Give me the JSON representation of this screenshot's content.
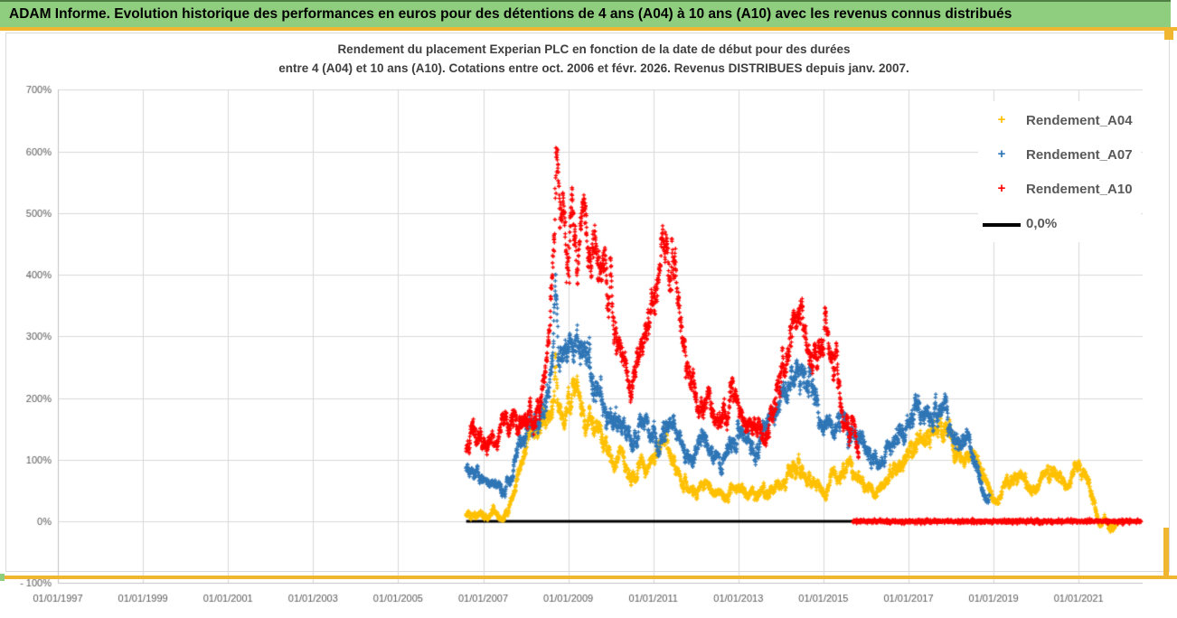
{
  "window": {
    "title": "ADAM Informe. Evolution historique des performances en euros pour des détentions de 4 ans (A04) à 10 ans (A10) avec les revenus connus distribués"
  },
  "theme": {
    "header_bg": "#8FCE7E",
    "header_top_border": "#4F7F42",
    "accent_gold": "#F0B62F",
    "grid_color": "#D9D9D9",
    "plot_border": "#C0C0C0",
    "axis_text": "#595959",
    "title_text": "#3F3F3F",
    "series_a04": "#FFC000",
    "series_a07": "#2E75B6",
    "series_a10": "#FF0000",
    "zero_line": "#000000"
  },
  "chart_data": {
    "type": "scatter",
    "title_line1": "Rendement du placement Experian PLC en fonction de la date de début pour des durées",
    "title_line2": "entre 4 (A04) et 10 ans (A10). Cotations entre oct. 2006 et févr. 2026. Revenus DISTRIBUES depuis janv. 2007.",
    "x_axis": {
      "tick_labels": [
        "01/01/1997",
        "01/01/1999",
        "01/01/2001",
        "01/01/2003",
        "01/01/2005",
        "01/01/2007",
        "01/01/2009",
        "01/01/2011",
        "01/01/2013",
        "01/01/2015",
        "01/01/2017",
        "01/01/2019",
        "01/01/2021"
      ],
      "tick_years": [
        1997,
        1999,
        2001,
        2003,
        2005,
        2007,
        2009,
        2011,
        2013,
        2015,
        2017,
        2019,
        2021
      ],
      "min_year": 1997,
      "max_year": 2022.5,
      "grid": true
    },
    "y_axis": {
      "tick_labels": [
        "700%",
        "600%",
        "500%",
        "400%",
        "300%",
        "200%",
        "100%",
        "0%",
        "- 100%"
      ],
      "tick_values": [
        700,
        600,
        500,
        400,
        300,
        200,
        100,
        0,
        -100
      ],
      "min": -100,
      "max": 700,
      "grid": true
    },
    "legend": {
      "position": "right",
      "entries": [
        {
          "label": "Rendement_A04",
          "marker": "plus",
          "color": "#FFC000"
        },
        {
          "label": "Rendement_A07",
          "marker": "plus",
          "color": "#2E75B6"
        },
        {
          "label": "Rendement_A10",
          "marker": "plus",
          "color": "#FF0000"
        },
        {
          "label": "0,0%",
          "marker": "line",
          "color": "#000000"
        }
      ]
    },
    "series": [
      {
        "name": "Rendement_A04",
        "type": "scatter",
        "marker": "plus",
        "color": "#FFC000",
        "value_range": [
          -24,
          286
        ],
        "anchors": [
          [
            2006.6,
            10
          ],
          [
            2006.9,
            15
          ],
          [
            2007.1,
            7
          ],
          [
            2007.25,
            16
          ],
          [
            2007.4,
            3
          ],
          [
            2007.55,
            12
          ],
          [
            2007.7,
            38
          ],
          [
            2007.85,
            85
          ],
          [
            2008.0,
            118
          ],
          [
            2008.15,
            138
          ],
          [
            2008.3,
            148
          ],
          [
            2008.45,
            158
          ],
          [
            2008.58,
            178
          ],
          [
            2008.64,
            195
          ],
          [
            2008.7,
            272
          ],
          [
            2008.76,
            200
          ],
          [
            2008.85,
            162
          ],
          [
            2009.0,
            188
          ],
          [
            2009.1,
            212
          ],
          [
            2009.25,
            192
          ],
          [
            2009.4,
            158
          ],
          [
            2009.55,
            172
          ],
          [
            2009.7,
            138
          ],
          [
            2009.85,
            118
          ],
          [
            2010.0,
            104
          ],
          [
            2010.15,
            118
          ],
          [
            2010.3,
            93
          ],
          [
            2010.45,
            64
          ],
          [
            2010.6,
            80
          ],
          [
            2010.75,
            99
          ],
          [
            2010.9,
            88
          ],
          [
            2011.1,
            114
          ],
          [
            2011.3,
            128
          ],
          [
            2011.45,
            94
          ],
          [
            2011.6,
            74
          ],
          [
            2011.8,
            56
          ],
          [
            2012.0,
            48
          ],
          [
            2012.2,
            62
          ],
          [
            2012.4,
            50
          ],
          [
            2012.6,
            38
          ],
          [
            2012.8,
            50
          ],
          [
            2013.0,
            58
          ],
          [
            2013.2,
            48
          ],
          [
            2013.4,
            42
          ],
          [
            2013.6,
            52
          ],
          [
            2013.8,
            48
          ],
          [
            2014.0,
            62
          ],
          [
            2014.2,
            78
          ],
          [
            2014.45,
            88
          ],
          [
            2014.6,
            68
          ],
          [
            2014.8,
            58
          ],
          [
            2015.0,
            48
          ],
          [
            2015.2,
            62
          ],
          [
            2015.4,
            80
          ],
          [
            2015.6,
            88
          ],
          [
            2015.8,
            72
          ],
          [
            2016.0,
            58
          ],
          [
            2016.2,
            48
          ],
          [
            2016.4,
            62
          ],
          [
            2016.6,
            78
          ],
          [
            2016.8,
            92
          ],
          [
            2017.0,
            108
          ],
          [
            2017.2,
            128
          ],
          [
            2017.45,
            148
          ],
          [
            2017.7,
            157
          ],
          [
            2017.9,
            145
          ],
          [
            2018.1,
            115
          ],
          [
            2018.3,
            98
          ],
          [
            2018.45,
            110
          ],
          [
            2018.65,
            88
          ],
          [
            2018.85,
            60
          ],
          [
            2019.05,
            30
          ],
          [
            2019.25,
            50
          ],
          [
            2019.45,
            68
          ],
          [
            2019.65,
            80
          ],
          [
            2019.8,
            62
          ],
          [
            2019.95,
            52
          ],
          [
            2020.15,
            68
          ],
          [
            2020.35,
            86
          ],
          [
            2020.55,
            70
          ],
          [
            2020.75,
            58
          ],
          [
            2020.95,
            90
          ],
          [
            2021.1,
            76
          ],
          [
            2021.25,
            48
          ],
          [
            2021.4,
            18
          ],
          [
            2021.5,
            -8
          ],
          [
            2021.62,
            6
          ],
          [
            2021.75,
            -12
          ],
          [
            2021.92,
            -6
          ]
        ]
      },
      {
        "name": "Rendement_A07",
        "type": "scatter",
        "marker": "plus",
        "color": "#2E75B6",
        "value_range": [
          24,
          422
        ],
        "anchors": [
          [
            2006.6,
            88
          ],
          [
            2006.8,
            76
          ],
          [
            2007.0,
            66
          ],
          [
            2007.15,
            56
          ],
          [
            2007.3,
            62
          ],
          [
            2007.45,
            48
          ],
          [
            2007.6,
            60
          ],
          [
            2007.75,
            95
          ],
          [
            2007.9,
            132
          ],
          [
            2008.05,
            150
          ],
          [
            2008.2,
            162
          ],
          [
            2008.35,
            178
          ],
          [
            2008.5,
            205
          ],
          [
            2008.64,
            250
          ],
          [
            2008.7,
            410
          ],
          [
            2008.76,
            262
          ],
          [
            2008.85,
            236
          ],
          [
            2009.0,
            256
          ],
          [
            2009.15,
            284
          ],
          [
            2009.3,
            294
          ],
          [
            2009.45,
            264
          ],
          [
            2009.6,
            234
          ],
          [
            2009.75,
            205
          ],
          [
            2009.9,
            176
          ],
          [
            2010.05,
            160
          ],
          [
            2010.2,
            180
          ],
          [
            2010.35,
            154
          ],
          [
            2010.5,
            134
          ],
          [
            2010.65,
            150
          ],
          [
            2010.8,
            168
          ],
          [
            2010.95,
            145
          ],
          [
            2011.1,
            122
          ],
          [
            2011.25,
            150
          ],
          [
            2011.4,
            168
          ],
          [
            2011.55,
            140
          ],
          [
            2011.7,
            120
          ],
          [
            2011.85,
            104
          ],
          [
            2012.0,
            118
          ],
          [
            2012.15,
            134
          ],
          [
            2012.3,
            120
          ],
          [
            2012.45,
            104
          ],
          [
            2012.6,
            95
          ],
          [
            2012.75,
            114
          ],
          [
            2012.9,
            130
          ],
          [
            2013.05,
            144
          ],
          [
            2013.2,
            130
          ],
          [
            2013.35,
            118
          ],
          [
            2013.5,
            134
          ],
          [
            2013.65,
            150
          ],
          [
            2013.8,
            170
          ],
          [
            2014.0,
            196
          ],
          [
            2014.2,
            226
          ],
          [
            2014.4,
            248
          ],
          [
            2014.6,
            254
          ],
          [
            2014.75,
            224
          ],
          [
            2014.9,
            184
          ],
          [
            2015.05,
            158
          ],
          [
            2015.2,
            144
          ],
          [
            2015.35,
            158
          ],
          [
            2015.5,
            168
          ],
          [
            2015.65,
            154
          ],
          [
            2015.8,
            148
          ],
          [
            2016.0,
            124
          ],
          [
            2016.2,
            106
          ],
          [
            2016.35,
            94
          ],
          [
            2016.5,
            114
          ],
          [
            2016.7,
            134
          ],
          [
            2016.9,
            150
          ],
          [
            2017.05,
            170
          ],
          [
            2017.25,
            194
          ],
          [
            2017.4,
            174
          ],
          [
            2017.55,
            160
          ],
          [
            2017.75,
            188
          ],
          [
            2017.9,
            164
          ],
          [
            2018.05,
            140
          ],
          [
            2018.2,
            126
          ],
          [
            2018.35,
            134
          ],
          [
            2018.5,
            116
          ],
          [
            2018.6,
            94
          ],
          [
            2018.7,
            60
          ],
          [
            2018.8,
            42
          ],
          [
            2018.9,
            34
          ]
        ]
      },
      {
        "name": "Rendement_A10",
        "type": "scatter",
        "marker": "plus",
        "color": "#FF0000",
        "value_range": [
          96,
          625
        ],
        "zero_tail": [
          2015.7,
          2022.47
        ],
        "anchors": [
          [
            2006.6,
            136
          ],
          [
            2006.8,
            148
          ],
          [
            2007.0,
            130
          ],
          [
            2007.15,
            118
          ],
          [
            2007.3,
            138
          ],
          [
            2007.45,
            152
          ],
          [
            2007.6,
            142
          ],
          [
            2007.75,
            158
          ],
          [
            2007.9,
            166
          ],
          [
            2008.05,
            160
          ],
          [
            2008.2,
            174
          ],
          [
            2008.35,
            196
          ],
          [
            2008.5,
            268
          ],
          [
            2008.6,
            356
          ],
          [
            2008.66,
            440
          ],
          [
            2008.72,
            612
          ],
          [
            2008.78,
            488
          ],
          [
            2008.86,
            446
          ],
          [
            2008.95,
            464
          ],
          [
            2009.05,
            494
          ],
          [
            2009.15,
            474
          ],
          [
            2009.25,
            444
          ],
          [
            2009.35,
            468
          ],
          [
            2009.45,
            450
          ],
          [
            2009.55,
            424
          ],
          [
            2009.65,
            444
          ],
          [
            2009.75,
            414
          ],
          [
            2009.85,
            432
          ],
          [
            2009.95,
            390
          ],
          [
            2010.05,
            338
          ],
          [
            2010.15,
            300
          ],
          [
            2010.25,
            270
          ],
          [
            2010.35,
            244
          ],
          [
            2010.45,
            214
          ],
          [
            2010.55,
            234
          ],
          [
            2010.65,
            258
          ],
          [
            2010.75,
            284
          ],
          [
            2010.85,
            318
          ],
          [
            2010.95,
            348
          ],
          [
            2011.05,
            378
          ],
          [
            2011.15,
            398
          ],
          [
            2011.25,
            428
          ],
          [
            2011.37,
            450
          ],
          [
            2011.5,
            398
          ],
          [
            2011.6,
            348
          ],
          [
            2011.7,
            298
          ],
          [
            2011.8,
            258
          ],
          [
            2011.9,
            228
          ],
          [
            2012.0,
            204
          ],
          [
            2012.1,
            188
          ],
          [
            2012.2,
            208
          ],
          [
            2012.3,
            224
          ],
          [
            2012.4,
            198
          ],
          [
            2012.5,
            178
          ],
          [
            2012.6,
            164
          ],
          [
            2012.7,
            184
          ],
          [
            2012.8,
            198
          ],
          [
            2012.9,
            214
          ],
          [
            2013.0,
            188
          ],
          [
            2013.1,
            168
          ],
          [
            2013.2,
            154
          ],
          [
            2013.3,
            164
          ],
          [
            2013.45,
            146
          ],
          [
            2013.6,
            142
          ],
          [
            2013.7,
            158
          ],
          [
            2013.8,
            184
          ],
          [
            2013.9,
            214
          ],
          [
            2014.0,
            244
          ],
          [
            2014.1,
            274
          ],
          [
            2014.2,
            304
          ],
          [
            2014.3,
            328
          ],
          [
            2014.43,
            346
          ],
          [
            2014.55,
            308
          ],
          [
            2014.65,
            268
          ],
          [
            2014.75,
            244
          ],
          [
            2014.85,
            264
          ],
          [
            2014.95,
            284
          ],
          [
            2015.05,
            294
          ],
          [
            2015.15,
            274
          ],
          [
            2015.25,
            244
          ],
          [
            2015.35,
            214
          ],
          [
            2015.45,
            188
          ],
          [
            2015.55,
            164
          ],
          [
            2015.7,
            138
          ],
          [
            2015.83,
            118
          ]
        ]
      },
      {
        "name": "0,0%",
        "type": "line",
        "color": "#000000",
        "points": [
          [
            2006.6,
            0
          ],
          [
            2015.78,
            0
          ]
        ]
      }
    ]
  }
}
